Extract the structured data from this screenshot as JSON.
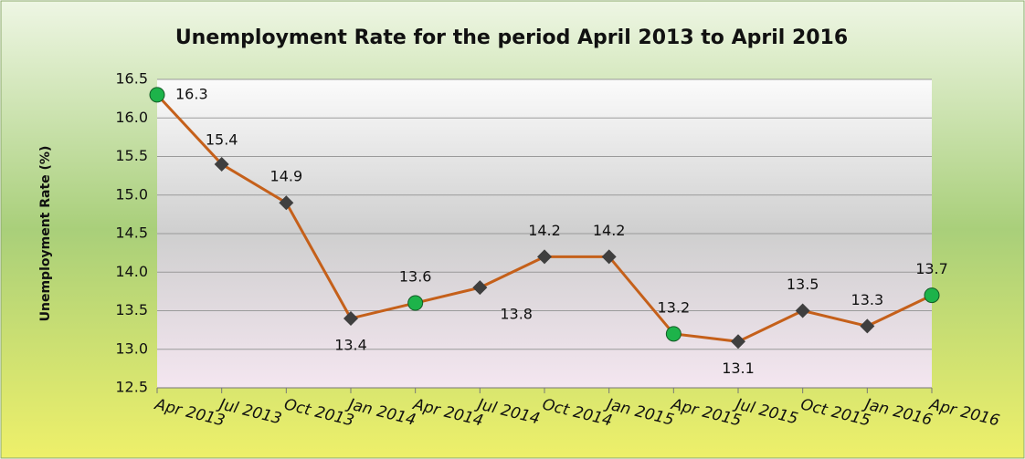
{
  "chart_data": {
    "type": "line",
    "title": "Unemployment Rate for the period April 2013 to April 2016",
    "y_label": "Unemployment Rate (%)",
    "categories": [
      "Apr 2013",
      "Jul 2013",
      "Oct 2013",
      "Jan 2014",
      "Apr 2014",
      "Jul 2014",
      "Oct 2014",
      "Jan 2015",
      "Apr 2015",
      "Jul 2015",
      "Oct 2015",
      "Jan 2016",
      "Apr 2016"
    ],
    "series": [
      {
        "name": "Unemployment Rate",
        "color": "#c5601a",
        "values": [
          16.3,
          15.4,
          14.9,
          13.4,
          13.6,
          13.8,
          14.2,
          14.2,
          13.2,
          13.1,
          13.5,
          13.3,
          13.7
        ],
        "markers": [
          "circle",
          "diamond",
          "diamond",
          "diamond",
          "circle",
          "diamond",
          "diamond",
          "diamond",
          "circle",
          "diamond",
          "diamond",
          "diamond",
          "circle"
        ],
        "marker_colors": {
          "circle": "#1db34a",
          "diamond": "#3f3f3f"
        }
      }
    ],
    "ylim": [
      12.5,
      16.5
    ],
    "yticks": [
      12.5,
      {
        "value": 13,
        "label": "13.0"
      },
      13.5,
      {
        "value": 14,
        "label": "14.0"
      },
      14.5,
      {
        "value": 15,
        "label": "15.0"
      },
      15.5,
      {
        "value": 16,
        "label": "16.0"
      },
      16.5
    ],
    "grid": true
  }
}
